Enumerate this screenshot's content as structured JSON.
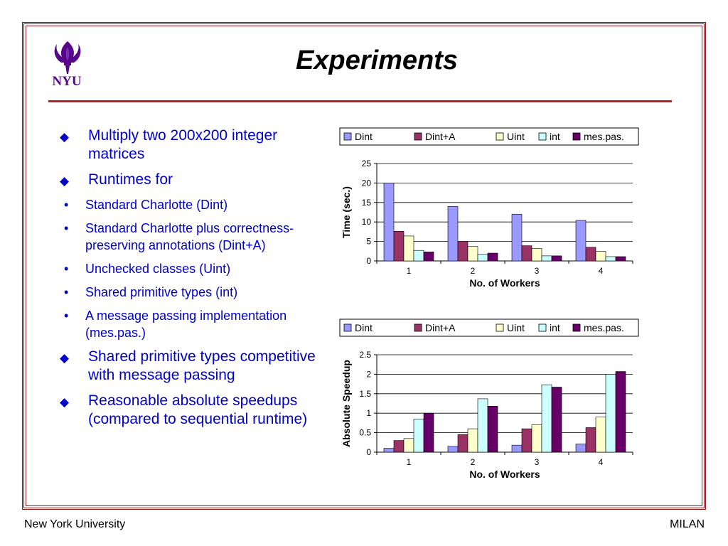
{
  "slide": {
    "title": "Experiments",
    "logo_text": "NYU",
    "footer_left": "New York University",
    "footer_right": "MILAN"
  },
  "bullets": [
    {
      "text": "Multiply two 200x200 integer matrices",
      "sub": []
    },
    {
      "text": "Runtimes for",
      "sub": [
        "Standard Charlotte (Dint)",
        "Standard Charlotte plus correctness-preserving annotations (Dint+A)",
        "Unchecked classes (Uint)",
        "Shared primitive types  (int)",
        "A message passing implementation (mes.pas.)"
      ]
    },
    {
      "text": "Shared primitive types competitive with  message passing",
      "sub": []
    },
    {
      "text": "Reasonable absolute speedups (compared to sequential runtime)",
      "sub": []
    }
  ],
  "colors": {
    "frame": "#8b1a1a",
    "title_rule": "#b22222",
    "bullet_text": "#0000cc",
    "logo": "#57068c"
  },
  "chart_data": [
    {
      "type": "bar",
      "categories": [
        "1",
        "2",
        "3",
        "4"
      ],
      "series": [
        {
          "name": "Dint",
          "color": "#9999ff",
          "values": [
            20,
            14,
            12,
            10.4
          ]
        },
        {
          "name": "Dint+A",
          "color": "#993366",
          "values": [
            7.6,
            5,
            3.9,
            3.5
          ]
        },
        {
          "name": "Uint",
          "color": "#ffffcc",
          "values": [
            6.4,
            3.7,
            3.2,
            2.5
          ]
        },
        {
          "name": "int",
          "color": "#ccffff",
          "values": [
            2.7,
            1.7,
            1.3,
            1.1
          ]
        },
        {
          "name": "mes.pas.",
          "color": "#660066",
          "values": [
            2.3,
            2,
            1.3,
            1.1
          ]
        }
      ],
      "xlabel": "No. of Workers",
      "ylabel": "Time (sec.)",
      "ylim": [
        0,
        25
      ],
      "yticks": [
        0,
        5,
        10,
        15,
        20,
        25
      ],
      "grid": true,
      "legend": "top"
    },
    {
      "type": "bar",
      "categories": [
        "1",
        "2",
        "3",
        "4"
      ],
      "series": [
        {
          "name": "Dint",
          "color": "#9999ff",
          "values": [
            0.1,
            0.15,
            0.18,
            0.21
          ]
        },
        {
          "name": "Dint+A",
          "color": "#993366",
          "values": [
            0.3,
            0.45,
            0.6,
            0.63
          ]
        },
        {
          "name": "Uint",
          "color": "#ffffcc",
          "values": [
            0.35,
            0.6,
            0.7,
            0.9
          ]
        },
        {
          "name": "int",
          "color": "#ccffff",
          "values": [
            0.85,
            1.37,
            1.73,
            2.0
          ]
        },
        {
          "name": "mes.pas.",
          "color": "#660066",
          "values": [
            1.0,
            1.18,
            1.67,
            2.07
          ]
        }
      ],
      "xlabel": "No. of Workers",
      "ylabel": "Absolute Speedup",
      "ylim": [
        0,
        2.5
      ],
      "yticks": [
        "0",
        "0.5",
        "1",
        "1.5",
        "2",
        "2.5"
      ],
      "grid": true,
      "legend": "top"
    }
  ]
}
